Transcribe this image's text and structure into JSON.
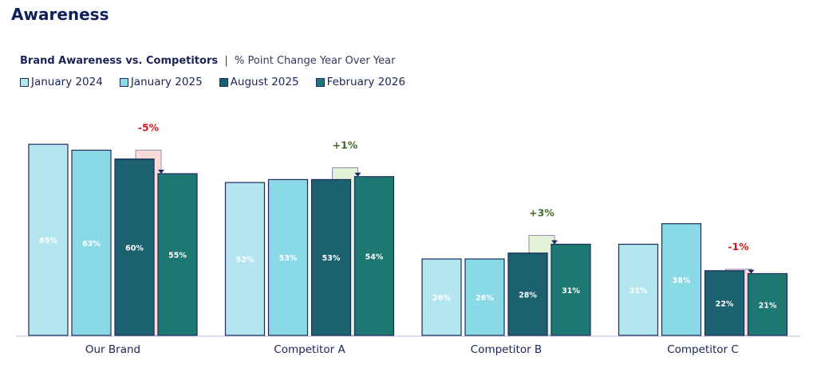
{
  "page_title": "Awareness",
  "chart_data": {
    "type": "bar",
    "title": "Brand Awareness vs. Competitors",
    "subtitle": "% Point Change Year Over Year",
    "categories": [
      "Our Brand",
      "Competitor A",
      "Competitor B",
      "Competitor C"
    ],
    "series": [
      {
        "name": "January 2024",
        "color": "#b3e6ee",
        "values": [
          65,
          52,
          26,
          31
        ]
      },
      {
        "name": "January 2025",
        "color": "#8ad9e6",
        "values": [
          63,
          53,
          26,
          38
        ]
      },
      {
        "name": "August 2025",
        "color": "#1c6170",
        "values": [
          60,
          53,
          28,
          22
        ]
      },
      {
        "name": "February 2026",
        "color": "#1e7872",
        "values": [
          55,
          54,
          31,
          21
        ]
      }
    ],
    "changes": [
      {
        "label": "-5%",
        "value": -5
      },
      {
        "label": "+1%",
        "value": 1
      },
      {
        "label": "+3%",
        "value": 3
      },
      {
        "label": "-1%",
        "value": -1
      }
    ],
    "colors": {
      "negative": "#d0191c",
      "positive": "#3e6b2a",
      "neg_fill": "#fbdada",
      "pos_fill": "#e3f3d8",
      "border": "#1c2a5e"
    },
    "ylim": [
      0,
      100
    ],
    "xlabel": "",
    "ylabel": ""
  }
}
